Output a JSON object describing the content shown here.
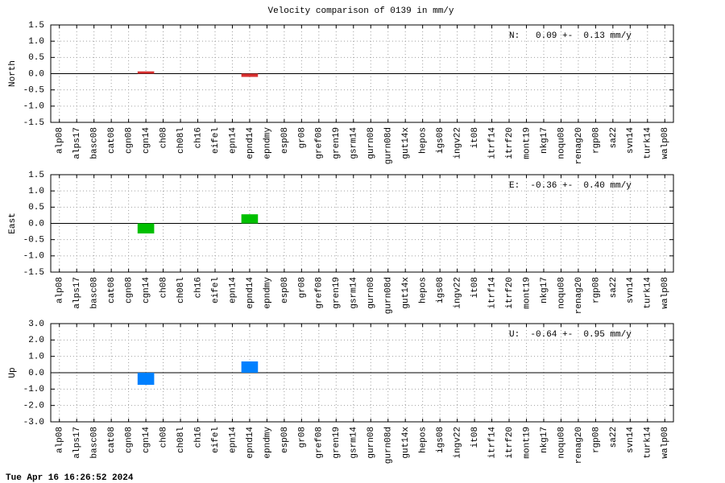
{
  "title": "Velocity comparison of 0139 in mm/y",
  "footer": "Tue Apr 16 16:26:52 2024",
  "chart_data": [
    {
      "type": "bar",
      "y_label": "North",
      "annotation": "N:   0.09 +-  0.13 mm/y",
      "color": "#d83030",
      "grid": true,
      "categories": [
        "alp08",
        "alps17",
        "basc08",
        "cat08",
        "cgn08",
        "cgn14",
        "ch08",
        "ch08l",
        "ch16",
        "eifel",
        "epn14",
        "epnd14",
        "epndmy",
        "esp08",
        "gr08",
        "gref08",
        "gren19",
        "gsrm14",
        "gurn08",
        "gurn08d",
        "gut14x",
        "hepos",
        "igs08",
        "ingv22",
        "it08",
        "itrf14",
        "itrf20",
        "mont19",
        "nkg17",
        "noqu08",
        "renag20",
        "rgp08",
        "sa22",
        "svn14",
        "turk14",
        "walp08"
      ],
      "values": [
        null,
        null,
        null,
        null,
        null,
        0.07,
        null,
        null,
        null,
        null,
        null,
        -0.1,
        null,
        null,
        null,
        null,
        null,
        null,
        null,
        null,
        null,
        null,
        null,
        null,
        null,
        null,
        null,
        null,
        null,
        null,
        null,
        null,
        null,
        null,
        null,
        null
      ],
      "ylim": [
        -1.5,
        1.5
      ],
      "yticks": [
        1.5,
        {
          "value": 1.0,
          "label": "1.0"
        },
        0.5,
        {
          "value": 0.0,
          "label": "0.0"
        },
        -0.5,
        {
          "value": -1.0,
          "label": "-1.0"
        },
        -1.5
      ]
    },
    {
      "type": "bar",
      "y_label": "East",
      "annotation": "E:  -0.36 +-  0.40 mm/y",
      "color": "#00c000",
      "grid": true,
      "categories": [
        "alp08",
        "alps17",
        "basc08",
        "cat08",
        "cgn08",
        "cgn14",
        "ch08",
        "ch08l",
        "ch16",
        "eifel",
        "epn14",
        "epnd14",
        "epndmy",
        "esp08",
        "gr08",
        "gref08",
        "gren19",
        "gsrm14",
        "gurn08",
        "gurn08d",
        "gut14x",
        "hepos",
        "igs08",
        "ingv22",
        "it08",
        "itrf14",
        "itrf20",
        "mont19",
        "nkg17",
        "noqu08",
        "renag20",
        "rgp08",
        "sa22",
        "svn14",
        "turk14",
        "walp08"
      ],
      "values": [
        null,
        null,
        null,
        null,
        null,
        -0.31,
        null,
        null,
        null,
        null,
        null,
        0.28,
        null,
        null,
        null,
        null,
        null,
        null,
        null,
        null,
        null,
        null,
        null,
        null,
        null,
        null,
        null,
        null,
        null,
        null,
        null,
        null,
        null,
        null,
        null,
        null
      ],
      "ylim": [
        -1.5,
        1.5
      ],
      "yticks": [
        1.5,
        {
          "value": 1.0,
          "label": "1.0"
        },
        0.5,
        {
          "value": 0.0,
          "label": "0.0"
        },
        -0.5,
        {
          "value": -1.0,
          "label": "-1.0"
        },
        -1.5
      ]
    },
    {
      "type": "bar",
      "y_label": "Up",
      "annotation": "U:  -0.64 +-  0.95 mm/y",
      "color": "#0080ff",
      "grid": true,
      "categories": [
        "alp08",
        "alps17",
        "basc08",
        "cat08",
        "cgn08",
        "cgn14",
        "ch08",
        "ch08l",
        "ch16",
        "eifel",
        "epn14",
        "epnd14",
        "epndmy",
        "esp08",
        "gr08",
        "gref08",
        "gren19",
        "gsrm14",
        "gurn08",
        "gurn08d",
        "gut14x",
        "hepos",
        "igs08",
        "ingv22",
        "it08",
        "itrf14",
        "itrf20",
        "mont19",
        "nkg17",
        "noqu08",
        "renag20",
        "rgp08",
        "sa22",
        "svn14",
        "turk14",
        "walp08"
      ],
      "values": [
        null,
        null,
        null,
        null,
        null,
        -0.74,
        null,
        null,
        null,
        null,
        null,
        0.69,
        null,
        null,
        null,
        null,
        null,
        null,
        null,
        null,
        null,
        null,
        null,
        null,
        null,
        null,
        null,
        null,
        null,
        null,
        null,
        null,
        null,
        null,
        null,
        null
      ],
      "ylim": [
        -3.0,
        3.0
      ],
      "yticks": [
        {
          "value": 3.0,
          "label": "3.0"
        },
        {
          "value": 2.0,
          "label": "2.0"
        },
        {
          "value": 1.0,
          "label": "1.0"
        },
        {
          "value": 0.0,
          "label": "0.0"
        },
        {
          "value": -1.0,
          "label": "-1.0"
        },
        {
          "value": -2.0,
          "label": "-2.0"
        },
        {
          "value": -3.0,
          "label": "-3.0"
        }
      ]
    }
  ]
}
